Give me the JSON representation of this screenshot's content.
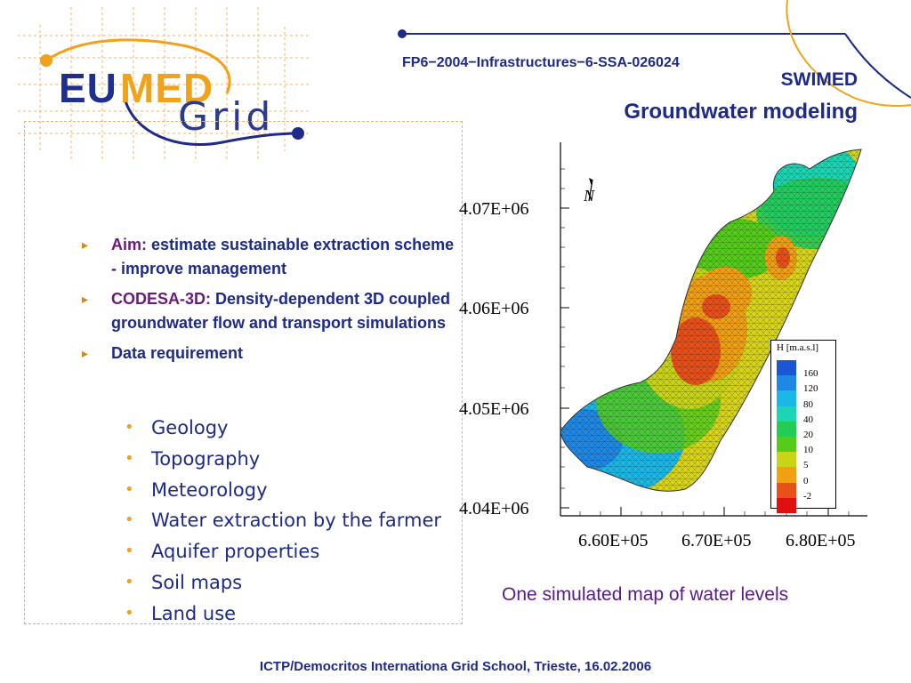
{
  "logo": {
    "eu": "EU",
    "med": "MED",
    "grid": "Grid"
  },
  "header": {
    "project_code": "FP6−2004−Infrastructures−6-SSA-026024",
    "title_line1": "SWIMED",
    "title_line2": "Groundwater modeling"
  },
  "content": {
    "aim_label": "Aim:",
    "aim_text": " estimate sustainable extraction scheme - improve management",
    "codesa_label": "CODESA-3D:",
    "codesa_text": " Density-dependent 3D coupled  groundwater flow and transport simulations",
    "data_req": "Data requirement",
    "data_items": [
      "Geology",
      "Topography",
      "Meteorology",
      "Water extraction by the farmer",
      "Aquifer properties",
      "Soil maps",
      "Land use"
    ]
  },
  "map": {
    "north_label": "N",
    "y_ticks": [
      "4.07E+06",
      "4.06E+06",
      "4.05E+06",
      "4.04E+06"
    ],
    "x_ticks": [
      "6.60E+05",
      "6.70E+05",
      "6.80E+05"
    ],
    "caption": "One simulated map of water levels",
    "legend": {
      "title": "H [m.a.s.l]",
      "values": [
        "160",
        "120",
        "80",
        "40",
        "20",
        "10",
        "5",
        "0",
        "-2"
      ],
      "colors": [
        "#1a56d6",
        "#1e88e5",
        "#19b8e6",
        "#1bd6b4",
        "#22cc55",
        "#55cc1a",
        "#c8d415",
        "#f0a010",
        "#e8501a",
        "#e01010"
      ]
    }
  },
  "footer": "ICTP/Democritos Internationa Grid School, Trieste, 16.02.2006",
  "colors": {
    "primary": "#1d2a8a",
    "accent": "#f0a21b",
    "label": "#6a1a7a"
  }
}
